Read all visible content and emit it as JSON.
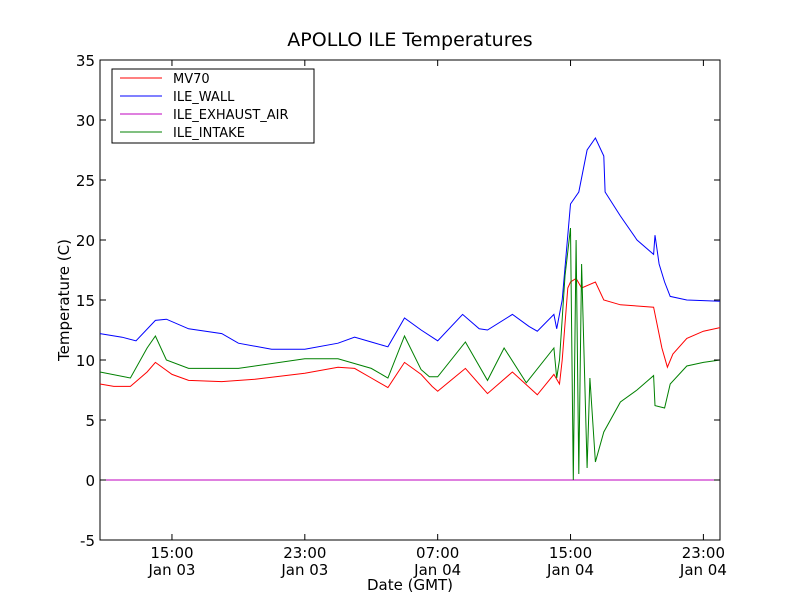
{
  "chart_data": {
    "type": "line",
    "title": "APOLLO ILE Temperatures",
    "xlabel": "Date (GMT)",
    "ylabel": "Temperature (C)",
    "ylim": [
      -5,
      35
    ],
    "xlim": [
      "2013-01-03T10:40",
      "2013-01-05T00:00"
    ],
    "grid": false,
    "legend_position": "top-left",
    "x_ticks": [
      {
        "x": "2013-01-03T15:00",
        "time": "15:00",
        "date": "Jan 03"
      },
      {
        "x": "2013-01-03T23:00",
        "time": "23:00",
        "date": "Jan 03"
      },
      {
        "x": "2013-01-04T07:00",
        "time": "07:00",
        "date": "Jan 04"
      },
      {
        "x": "2013-01-04T15:00",
        "time": "15:00",
        "date": "Jan 04"
      },
      {
        "x": "2013-01-04T23:00",
        "time": "23:00",
        "date": "Jan 04"
      }
    ],
    "y_ticks": [
      -5,
      0,
      5,
      10,
      15,
      20,
      25,
      30,
      35
    ],
    "series": [
      {
        "name": "MV70",
        "color": "#ff0000",
        "points": [
          [
            "2013-01-03T10:40",
            8.0
          ],
          [
            "2013-01-03T11:30",
            7.8
          ],
          [
            "2013-01-03T12:30",
            7.8
          ],
          [
            "2013-01-03T13:30",
            9.0
          ],
          [
            "2013-01-03T14:00",
            9.8
          ],
          [
            "2013-01-03T15:00",
            8.8
          ],
          [
            "2013-01-03T16:00",
            8.3
          ],
          [
            "2013-01-03T18:00",
            8.2
          ],
          [
            "2013-01-03T20:00",
            8.4
          ],
          [
            "2013-01-03T23:00",
            8.9
          ],
          [
            "2013-01-04T01:00",
            9.4
          ],
          [
            "2013-01-04T02:00",
            9.3
          ],
          [
            "2013-01-04T03:00",
            8.5
          ],
          [
            "2013-01-04T04:00",
            7.7
          ],
          [
            "2013-01-04T05:00",
            9.8
          ],
          [
            "2013-01-04T06:00",
            8.8
          ],
          [
            "2013-01-04T06:40",
            7.8
          ],
          [
            "2013-01-04T07:00",
            7.4
          ],
          [
            "2013-01-04T08:40",
            9.3
          ],
          [
            "2013-01-04T10:00",
            7.2
          ],
          [
            "2013-01-04T11:30",
            9.0
          ],
          [
            "2013-01-04T13:00",
            7.1
          ],
          [
            "2013-01-04T14:00",
            8.8
          ],
          [
            "2013-01-04T14:20",
            8.0
          ],
          [
            "2013-01-04T14:30",
            10.0
          ],
          [
            "2013-01-04T14:40",
            13.0
          ],
          [
            "2013-01-04T14:50",
            16.0
          ],
          [
            "2013-01-04T15:00",
            16.5
          ],
          [
            "2013-01-04T15:20",
            16.8
          ],
          [
            "2013-01-04T15:40",
            16.0
          ],
          [
            "2013-01-04T16:30",
            16.5
          ],
          [
            "2013-01-04T17:00",
            15.0
          ],
          [
            "2013-01-04T18:00",
            14.6
          ],
          [
            "2013-01-04T19:00",
            14.5
          ],
          [
            "2013-01-04T20:00",
            14.4
          ],
          [
            "2013-01-04T20:30",
            11.0
          ],
          [
            "2013-01-04T20:50",
            9.4
          ],
          [
            "2013-01-04T21:10",
            10.5
          ],
          [
            "2013-01-04T22:00",
            11.8
          ],
          [
            "2013-01-04T23:00",
            12.4
          ],
          [
            "2013-01-05T00:00",
            12.7
          ]
        ]
      },
      {
        "name": "ILE_WALL",
        "color": "#0000ff",
        "points": [
          [
            "2013-01-03T10:40",
            12.2
          ],
          [
            "2013-01-03T12:00",
            11.9
          ],
          [
            "2013-01-03T12:50",
            11.6
          ],
          [
            "2013-01-03T14:00",
            13.3
          ],
          [
            "2013-01-03T14:40",
            13.4
          ],
          [
            "2013-01-03T16:00",
            12.6
          ],
          [
            "2013-01-03T18:00",
            12.2
          ],
          [
            "2013-01-03T19:00",
            11.4
          ],
          [
            "2013-01-03T21:00",
            10.9
          ],
          [
            "2013-01-03T23:00",
            10.9
          ],
          [
            "2013-01-04T01:00",
            11.4
          ],
          [
            "2013-01-04T02:00",
            11.9
          ],
          [
            "2013-01-04T03:00",
            11.5
          ],
          [
            "2013-01-04T04:00",
            11.1
          ],
          [
            "2013-01-04T05:00",
            13.5
          ],
          [
            "2013-01-04T06:00",
            12.5
          ],
          [
            "2013-01-04T07:00",
            11.6
          ],
          [
            "2013-01-04T08:30",
            13.8
          ],
          [
            "2013-01-04T09:30",
            12.6
          ],
          [
            "2013-01-04T10:00",
            12.5
          ],
          [
            "2013-01-04T11:30",
            13.8
          ],
          [
            "2013-01-04T12:30",
            12.8
          ],
          [
            "2013-01-04T13:00",
            12.4
          ],
          [
            "2013-01-04T14:00",
            13.8
          ],
          [
            "2013-01-04T14:10",
            12.6
          ],
          [
            "2013-01-04T14:30",
            15.0
          ],
          [
            "2013-01-04T15:00",
            23.0
          ],
          [
            "2013-01-04T15:30",
            24.0
          ],
          [
            "2013-01-04T16:00",
            27.5
          ],
          [
            "2013-01-04T16:30",
            28.5
          ],
          [
            "2013-01-04T17:00",
            27.0
          ],
          [
            "2013-01-04T17:05",
            24.0
          ],
          [
            "2013-01-04T18:00",
            22.0
          ],
          [
            "2013-01-04T19:00",
            20.0
          ],
          [
            "2013-01-04T20:00",
            18.8
          ],
          [
            "2013-01-04T20:05",
            20.4
          ],
          [
            "2013-01-04T20:20",
            18.0
          ],
          [
            "2013-01-04T20:40",
            16.5
          ],
          [
            "2013-01-04T21:00",
            15.3
          ],
          [
            "2013-01-04T22:00",
            15.0
          ],
          [
            "2013-01-05T00:00",
            14.9
          ]
        ]
      },
      {
        "name": "ILE_EXHAUST_AIR",
        "color": "#bf00bf",
        "points": [
          [
            "2013-01-03T10:40",
            0.0
          ],
          [
            "2013-01-05T00:00",
            0.0
          ]
        ]
      },
      {
        "name": "ILE_INTAKE",
        "color": "#008000",
        "points": [
          [
            "2013-01-03T10:40",
            9.0
          ],
          [
            "2013-01-03T12:30",
            8.5
          ],
          [
            "2013-01-03T13:30",
            11.0
          ],
          [
            "2013-01-03T14:00",
            12.0
          ],
          [
            "2013-01-03T14:40",
            10.0
          ],
          [
            "2013-01-03T16:00",
            9.3
          ],
          [
            "2013-01-03T19:00",
            9.3
          ],
          [
            "2013-01-03T23:00",
            10.1
          ],
          [
            "2013-01-04T01:00",
            10.1
          ],
          [
            "2013-01-04T03:00",
            9.3
          ],
          [
            "2013-01-04T04:00",
            8.5
          ],
          [
            "2013-01-04T05:00",
            12.0
          ],
          [
            "2013-01-04T06:00",
            9.2
          ],
          [
            "2013-01-04T06:30",
            8.6
          ],
          [
            "2013-01-04T07:00",
            8.6
          ],
          [
            "2013-01-04T08:40",
            11.5
          ],
          [
            "2013-01-04T10:00",
            8.3
          ],
          [
            "2013-01-04T11:00",
            11.0
          ],
          [
            "2013-01-04T12:20",
            8.1
          ],
          [
            "2013-01-04T14:00",
            11.0
          ],
          [
            "2013-01-04T14:10",
            8.5
          ],
          [
            "2013-01-04T14:20",
            10.0
          ],
          [
            "2013-01-04T14:40",
            17.0
          ],
          [
            "2013-01-04T15:00",
            21.0
          ],
          [
            "2013-01-04T15:10",
            0.0
          ],
          [
            "2013-01-04T15:20",
            20.0
          ],
          [
            "2013-01-04T15:30",
            0.5
          ],
          [
            "2013-01-04T15:40",
            18.0
          ],
          [
            "2013-01-04T16:00",
            1.0
          ],
          [
            "2013-01-04T16:10",
            8.5
          ],
          [
            "2013-01-04T16:30",
            1.5
          ],
          [
            "2013-01-04T17:00",
            4.0
          ],
          [
            "2013-01-04T18:00",
            6.5
          ],
          [
            "2013-01-04T19:00",
            7.5
          ],
          [
            "2013-01-04T20:00",
            8.7
          ],
          [
            "2013-01-04T20:05",
            6.2
          ],
          [
            "2013-01-04T20:40",
            6.0
          ],
          [
            "2013-01-04T21:00",
            8.0
          ],
          [
            "2013-01-04T22:00",
            9.5
          ],
          [
            "2013-01-04T23:00",
            9.8
          ],
          [
            "2013-01-05T00:00",
            10.0
          ]
        ]
      }
    ]
  }
}
